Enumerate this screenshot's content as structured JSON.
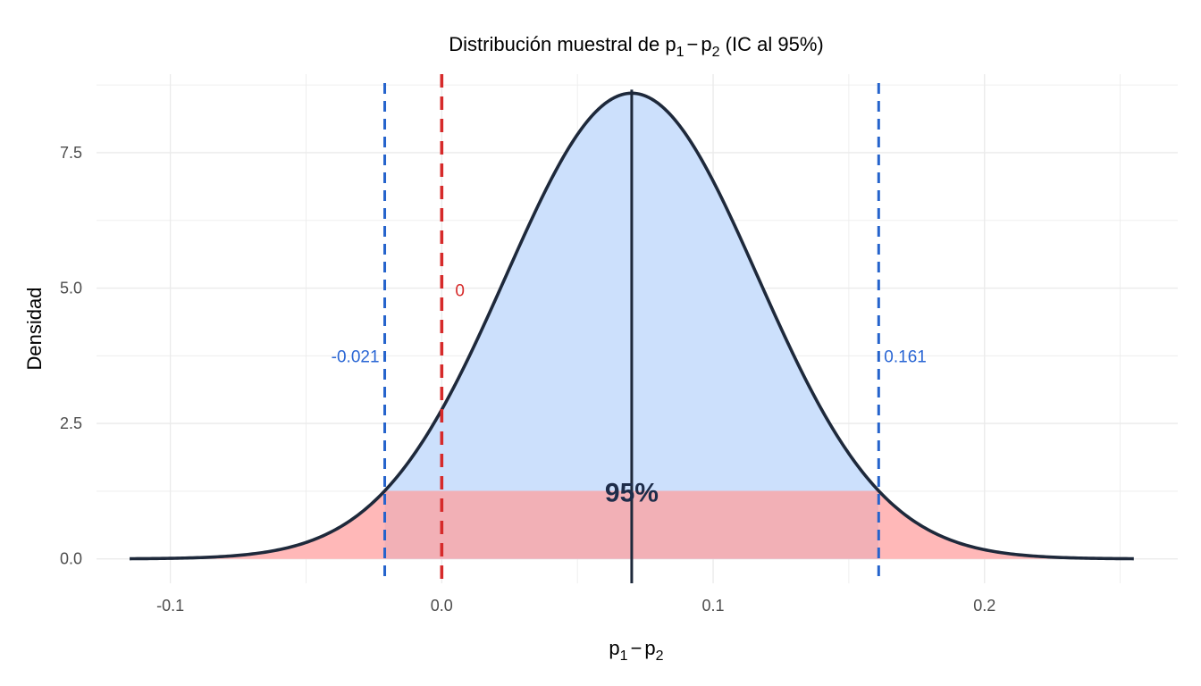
{
  "chart_data": {
    "type": "area",
    "title": {
      "prefix": "Distribución muestral de ",
      "math": {
        "p1": "p",
        "sub1": "1",
        "minus": "−",
        "p2": "p",
        "sub2": "2"
      },
      "suffix": "  (IC al 95%)"
    },
    "xlabel": {
      "p1": "p",
      "sub1": "1",
      "minus": "−",
      "p2": "p",
      "sub2": "2"
    },
    "ylabel": "Densidad",
    "xlim": [
      -0.1272,
      0.2712
    ],
    "ylim": [
      -0.45,
      8.95
    ],
    "x_ticks": [
      -0.1,
      0.0,
      0.1,
      0.2
    ],
    "x_tick_labels": [
      "-0.1",
      "0.0",
      "0.1",
      "0.2"
    ],
    "y_ticks": [
      0,
      2.5,
      5.0,
      7.5
    ],
    "y_tick_labels": [
      "0.0",
      "2.5",
      "5.0",
      "7.5"
    ],
    "distribution": {
      "kind": "normal",
      "mean": 0.07,
      "sd": 0.0464,
      "x_range": [
        -0.115,
        0.255
      ]
    },
    "ci": {
      "lower": -0.021,
      "upper": 0.161,
      "level": 0.95
    },
    "labels": {
      "lower": "-0.021",
      "upper": "0.161",
      "null_value": "0",
      "percent": "95%"
    },
    "null_value": 0,
    "grid": true,
    "colors": {
      "center_fill": "#cce0fc",
      "tail_fill": "#ffb8b8",
      "band_fill": "#f2b0b6",
      "curve": "#1e293b",
      "ci_lines": "#2563cc",
      "ci_text": "#2a66d4",
      "null_line": "#d62a2a",
      "null_text": "#d62a2a",
      "mean_line": "#1e293b",
      "percent_text": "#1e2d4a",
      "grid": "#ebebeb"
    }
  }
}
